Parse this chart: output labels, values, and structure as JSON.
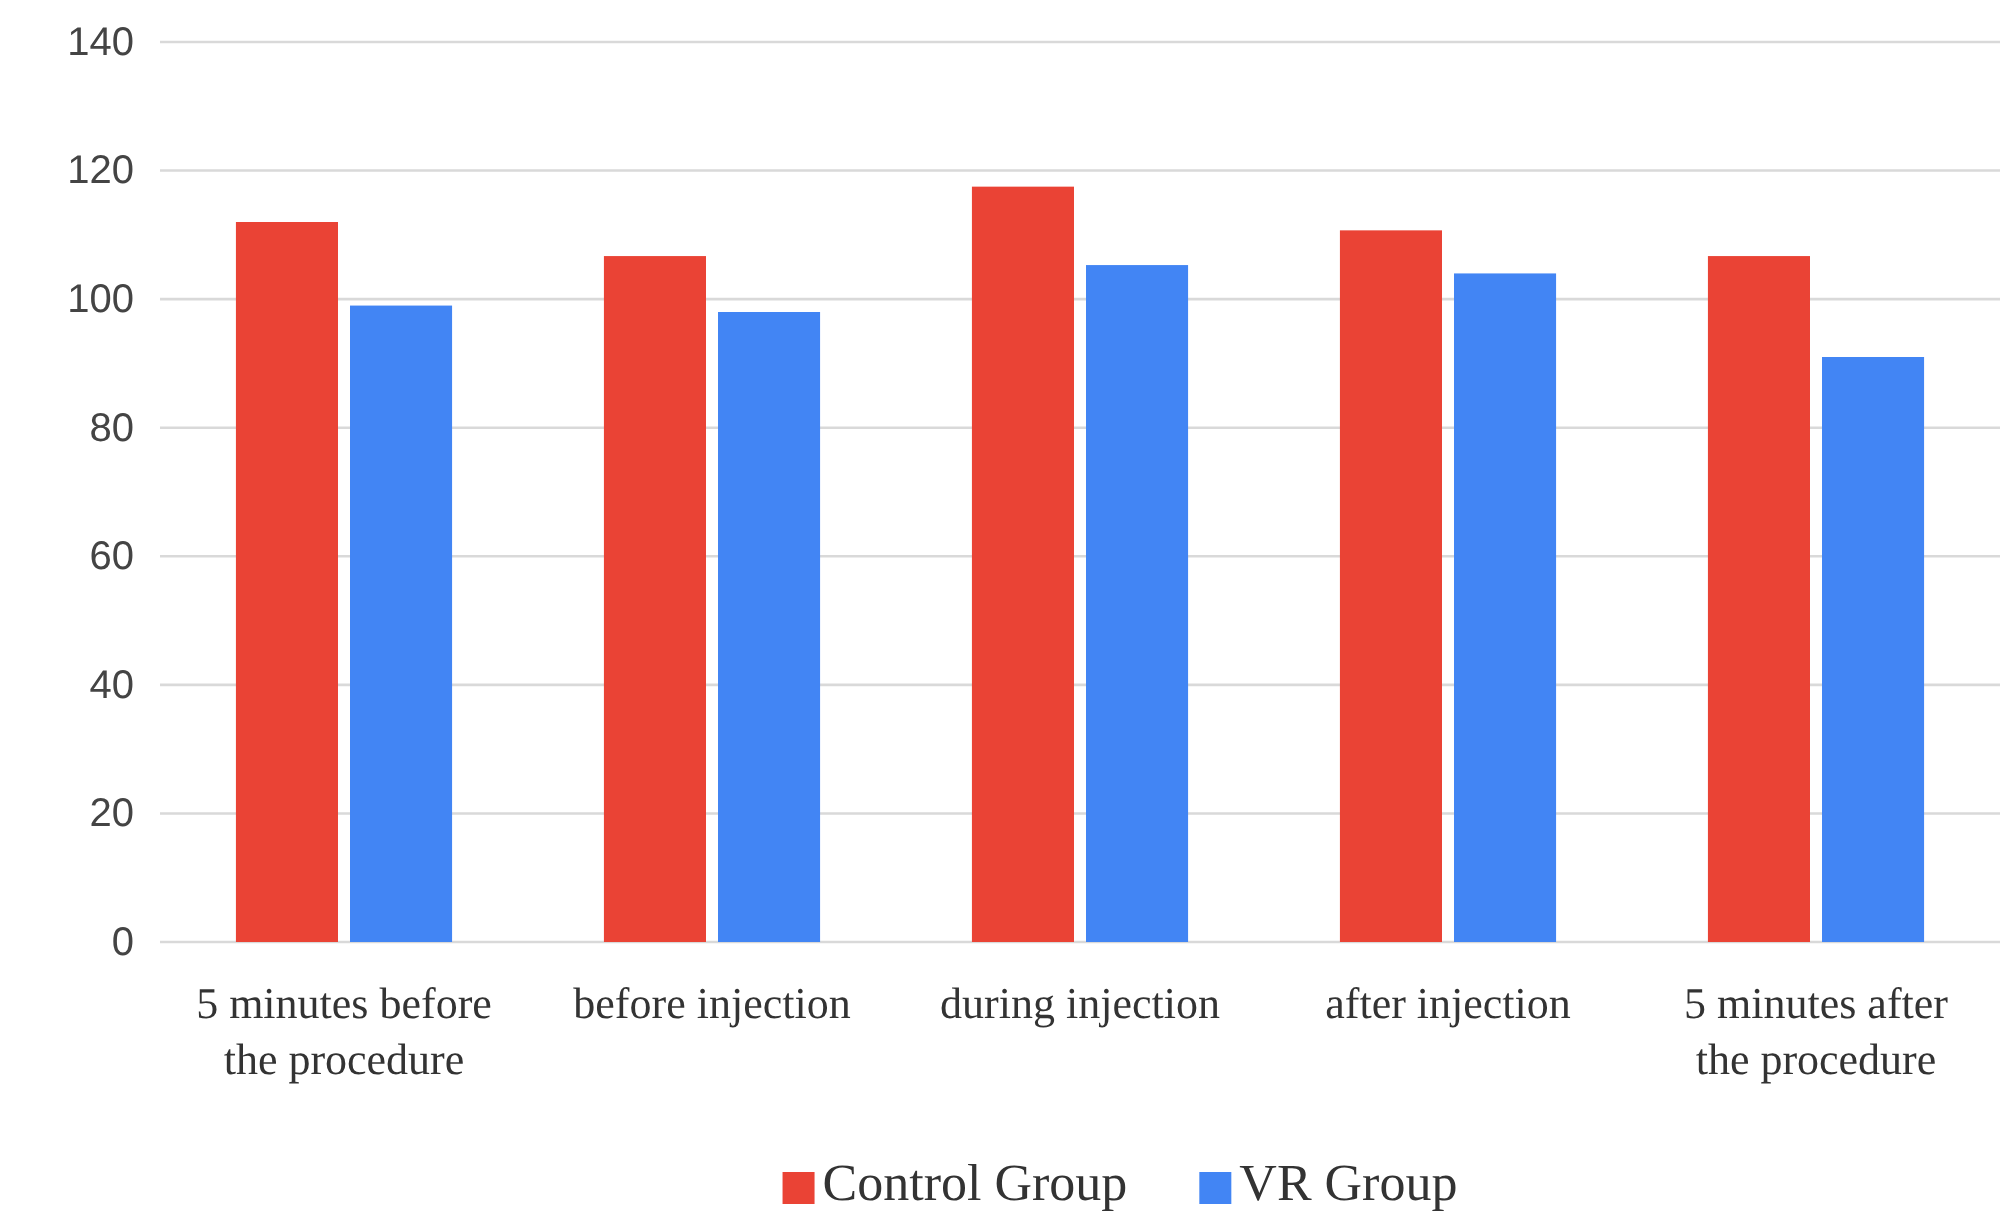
{
  "chart_data": {
    "type": "bar",
    "categories": [
      "5 minutes before the procedure",
      "before injection",
      "during injection",
      "after injection",
      "5 minutes after the procedure"
    ],
    "series": [
      {
        "name": "Control Group",
        "color": "#ea4335",
        "values": [
          112,
          106.7,
          117.5,
          110.7,
          106.7
        ]
      },
      {
        "name": "VR Group",
        "color": "#4285f4",
        "values": [
          99,
          98,
          105.3,
          104,
          91
        ]
      }
    ],
    "ylim": [
      0,
      140
    ],
    "yticks": [
      0,
      20,
      40,
      60,
      80,
      100,
      120,
      140
    ],
    "grid": "y",
    "legend": "bottom"
  }
}
